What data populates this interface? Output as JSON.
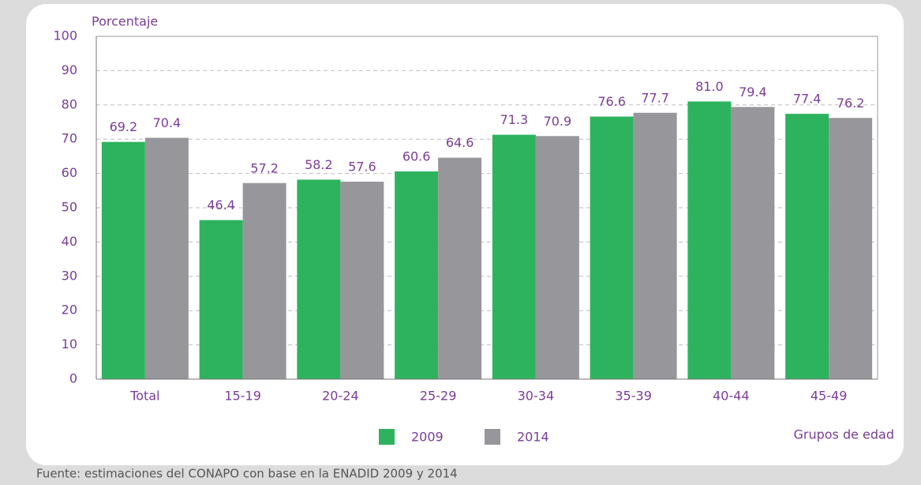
{
  "chart_data": {
    "type": "bar",
    "y_label": "Porcentaje",
    "x_label": "Grupos de edad",
    "categories": [
      "Total",
      "15-19",
      "20-24",
      "25-29",
      "30-34",
      "35-39",
      "40-44",
      "45-49"
    ],
    "series": [
      {
        "name": "2009",
        "color": "#2db35e",
        "values": [
          69.2,
          46.4,
          58.2,
          60.6,
          71.3,
          76.6,
          81.0,
          77.4
        ],
        "value_labels": [
          "69.2",
          "46.4",
          "58.2",
          "60.6",
          "71.3",
          "76.6",
          "81.0",
          "77.4"
        ]
      },
      {
        "name": "2014",
        "color": "#97979b",
        "values": [
          70.4,
          57.2,
          57.6,
          64.6,
          70.9,
          77.7,
          79.4,
          76.2
        ],
        "value_labels": [
          "70.4",
          "57.2",
          "57.6",
          "64.6",
          "70.9",
          "77.7",
          "79.4",
          "76.2"
        ]
      }
    ],
    "ylim": [
      0,
      100
    ],
    "yticks": [
      0,
      10,
      20,
      30,
      40,
      50,
      60,
      70,
      80,
      90,
      100
    ],
    "grid": true,
    "source": "Fuente: estimaciones del CONAPO con base en la ENADID 2009 y 2014"
  }
}
